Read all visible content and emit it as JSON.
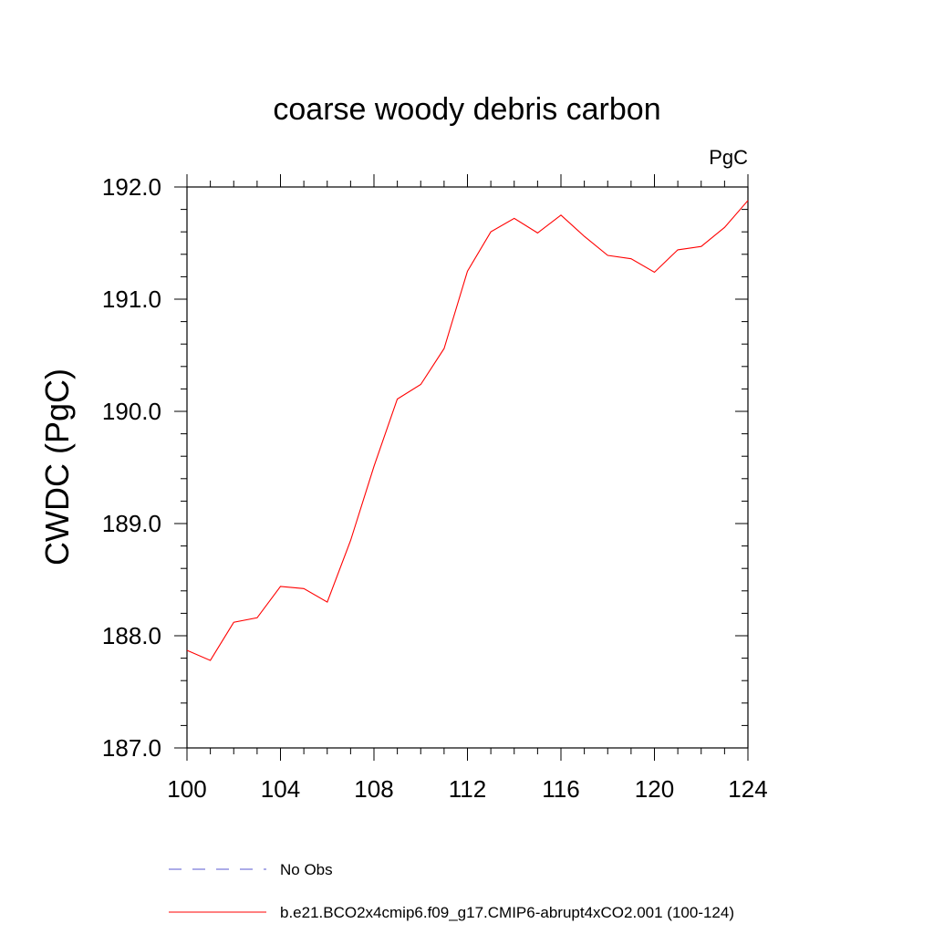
{
  "chart_data": {
    "type": "line",
    "title": "coarse woody debris carbon",
    "units": "PgC",
    "xlabel": "",
    "ylabel": "CWDC  (PgC)",
    "xlim": [
      100,
      124
    ],
    "ylim": [
      187.0,
      192.0
    ],
    "xticks": [
      100,
      104,
      108,
      112,
      116,
      120,
      124
    ],
    "xtick_labels": [
      "100",
      "104",
      "108",
      "112",
      "116",
      "120",
      "124"
    ],
    "yticks": [
      187.0,
      188.0,
      189.0,
      190.0,
      191.0,
      192.0
    ],
    "ytick_labels": [
      "187.0",
      "188.0",
      "189.0",
      "190.0",
      "191.0",
      "192.0"
    ],
    "grid": false,
    "legend_position": "bottom",
    "series": [
      {
        "name": "No Obs",
        "color": "#5a5ad0",
        "dash": "dashed",
        "x": [],
        "y": []
      },
      {
        "name": "b.e21.BCO2x4cmip6.f09_g17.CMIP6-abrupt4xCO2.001 (100-124)",
        "color": "#ff0000",
        "dash": "solid",
        "x": [
          100,
          101,
          102,
          103,
          104,
          105,
          106,
          107,
          108,
          109,
          110,
          111,
          112,
          113,
          114,
          115,
          116,
          117,
          118,
          119,
          120,
          121,
          122,
          123,
          124
        ],
        "y": [
          187.87,
          187.78,
          188.12,
          188.16,
          188.44,
          188.42,
          188.3,
          188.85,
          189.51,
          190.11,
          190.24,
          190.56,
          191.25,
          191.6,
          191.72,
          191.59,
          191.75,
          191.56,
          191.39,
          191.36,
          191.24,
          191.44,
          191.47,
          191.64,
          191.88
        ]
      }
    ]
  }
}
